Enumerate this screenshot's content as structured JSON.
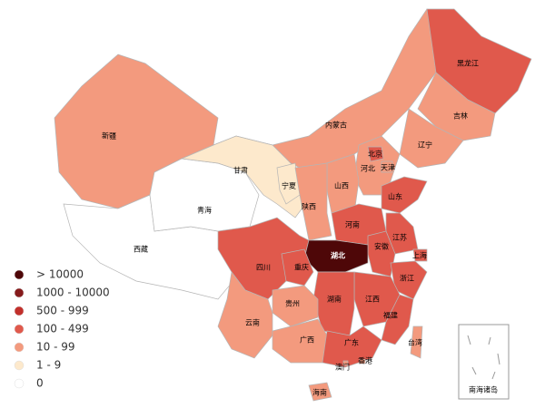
{
  "legend": [
    {
      "label": "> 10000",
      "color": "#4e0708"
    },
    {
      "label": "1000 - 10000",
      "color": "#861b1c"
    },
    {
      "label": "500 - 999",
      "color": "#c2302b"
    },
    {
      "label": "100 - 499",
      "color": "#e0594c"
    },
    {
      "label": "10 - 99",
      "color": "#f39a7e"
    },
    {
      "label": "1 - 9",
      "color": "#fde9cc"
    },
    {
      "label": "0",
      "color": "#ffffff"
    }
  ],
  "regions": [
    {
      "name": "内蒙古",
      "color": "#f39a7e"
    },
    {
      "name": "新疆",
      "color": "#f39a7e"
    },
    {
      "name": "西藏",
      "color": "#ffffff"
    },
    {
      "name": "青海",
      "color": "#ffffff"
    },
    {
      "name": "甘肃",
      "color": "#fde9cc"
    },
    {
      "name": "黑龙江",
      "color": "#e0594c"
    },
    {
      "name": "吉林",
      "color": "#f39a7e"
    },
    {
      "name": "辽宁",
      "color": "#f39a7e"
    },
    {
      "name": "河北",
      "color": "#f39a7e"
    },
    {
      "name": "北京",
      "color": "#e0594c"
    },
    {
      "name": "天津",
      "color": "#f39a7e"
    },
    {
      "name": "山西",
      "color": "#f39a7e"
    },
    {
      "name": "宁夏",
      "color": "#fde9cc"
    },
    {
      "name": "陕西",
      "color": "#f39a7e"
    },
    {
      "name": "山东",
      "color": "#e0594c"
    },
    {
      "name": "河南",
      "color": "#e0594c"
    },
    {
      "name": "江苏",
      "color": "#e0594c"
    },
    {
      "name": "安徽",
      "color": "#e0594c"
    },
    {
      "name": "上海",
      "color": "#e0594c"
    },
    {
      "name": "四川",
      "color": "#e0594c"
    },
    {
      "name": "湖北",
      "color": "#4e0708"
    },
    {
      "name": "重庆",
      "color": "#e0594c"
    },
    {
      "name": "浙江",
      "color": "#e0594c"
    },
    {
      "name": "江西",
      "color": "#e0594c"
    },
    {
      "name": "湖南",
      "color": "#e0594c"
    },
    {
      "name": "贵州",
      "color": "#f39a7e"
    },
    {
      "name": "福建",
      "color": "#e0594c"
    },
    {
      "name": "云南",
      "color": "#f39a7e"
    },
    {
      "name": "广西",
      "color": "#f39a7e"
    },
    {
      "name": "广东",
      "color": "#e0594c"
    },
    {
      "name": "台湾",
      "color": "#f39a7e"
    },
    {
      "name": "香港",
      "color": "#f39a7e"
    },
    {
      "name": "澳门",
      "color": "#f39a7e"
    },
    {
      "name": "海南",
      "color": "#f39a7e"
    }
  ],
  "inset_label": "南海诸岛"
}
